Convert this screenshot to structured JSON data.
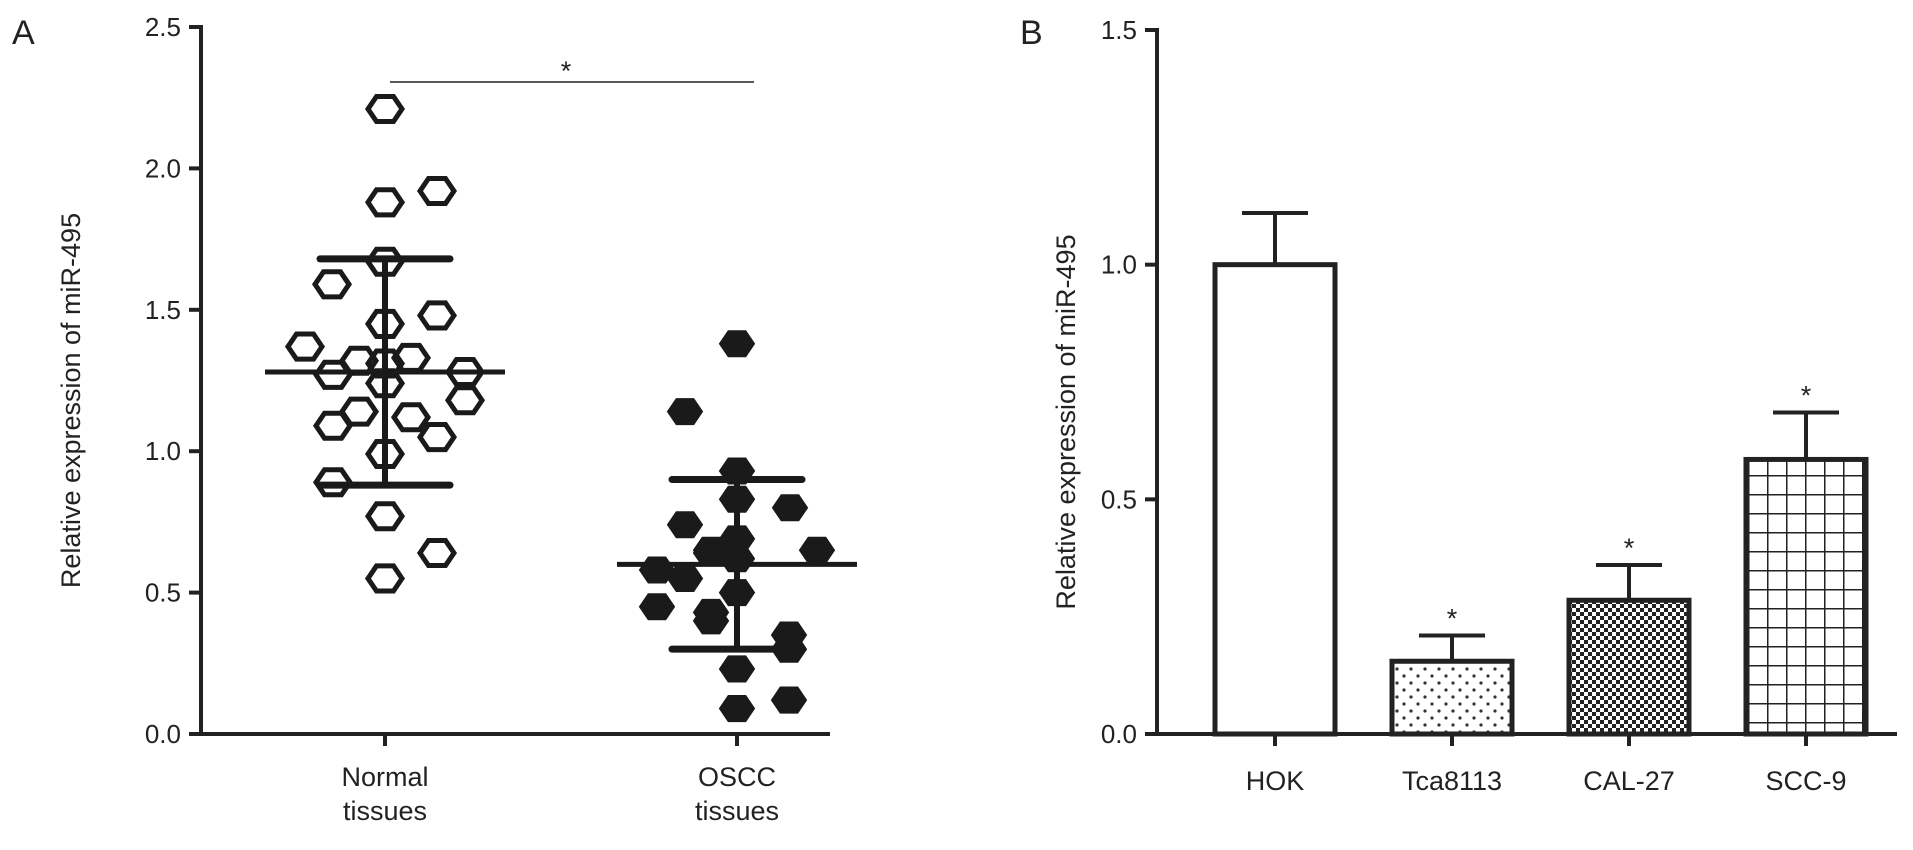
{
  "chart_data": [
    {
      "panel_label": "A",
      "type": "scatter",
      "ylabel": "Relative expression of miR-495",
      "ylim": [
        0,
        2.5
      ],
      "yticks": [
        "0.0",
        "0.5",
        "1.0",
        "1.5",
        "2.0",
        "2.5"
      ],
      "categories": [
        "Normal\ntissues",
        "OSCC\ntissues"
      ],
      "category_lines": [
        [
          "Normal",
          "tissues"
        ],
        [
          "OSCC",
          "tissues"
        ]
      ],
      "series": [
        {
          "category": "Normal tissues",
          "marker": "hollow-hexagon",
          "values": [
            2.21,
            1.92,
            1.88,
            1.67,
            1.59,
            1.48,
            1.45,
            1.37,
            1.33,
            1.32,
            1.31,
            1.28,
            1.27,
            1.24,
            1.18,
            1.14,
            1.12,
            1.09,
            1.05,
            0.99,
            0.89,
            0.77,
            0.64,
            0.55
          ],
          "mean": 1.28,
          "sd_upper": 1.68,
          "sd_lower": 0.88
        },
        {
          "category": "OSCC tissues",
          "marker": "filled-hexagon",
          "values": [
            1.38,
            1.14,
            0.93,
            0.83,
            0.8,
            0.74,
            0.69,
            0.65,
            0.65,
            0.64,
            0.62,
            0.58,
            0.55,
            0.5,
            0.45,
            0.43,
            0.4,
            0.35,
            0.3,
            0.23,
            0.12,
            0.09
          ],
          "mean": 0.6,
          "sd_upper": 0.9,
          "sd_lower": 0.3
        }
      ],
      "significance": {
        "between": [
          "Normal tissues",
          "OSCC tissues"
        ],
        "label": "*"
      }
    },
    {
      "panel_label": "B",
      "type": "bar",
      "ylabel": "Relative expression of miR-495",
      "ylim": [
        0,
        1.5
      ],
      "yticks": [
        "0.0",
        "0.5",
        "1.0",
        "1.5"
      ],
      "categories": [
        "HOK",
        "Tca8113",
        "CAL-27",
        "SCC-9"
      ],
      "values": [
        1.0,
        0.155,
        0.285,
        0.585
      ],
      "errors": [
        0.11,
        0.055,
        0.075,
        0.1
      ],
      "patterns": [
        "none",
        "dots",
        "checker",
        "grid"
      ],
      "significance_labels": [
        "",
        "*",
        "*",
        "*"
      ]
    }
  ]
}
